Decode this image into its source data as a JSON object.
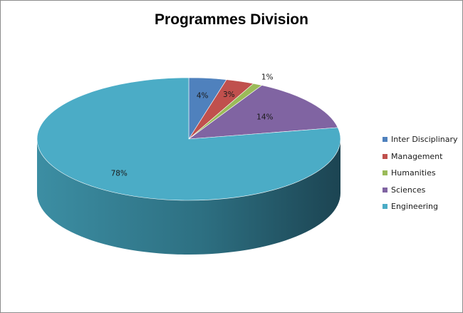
{
  "chart_data": {
    "type": "pie",
    "title": "Programmes Division",
    "categories": [
      "Inter Disciplinary",
      "Management",
      "Humanities",
      "Sciences",
      "Engineering"
    ],
    "values": [
      4,
      3,
      1,
      14,
      78
    ],
    "labels": [
      "4%",
      "3%",
      "1%",
      "14%",
      "78%"
    ],
    "colors": [
      "#4F81BD",
      "#C0504D",
      "#9BBB59",
      "#8064A2",
      "#4BACC6"
    ],
    "legend_position": "right",
    "three_d": true
  }
}
